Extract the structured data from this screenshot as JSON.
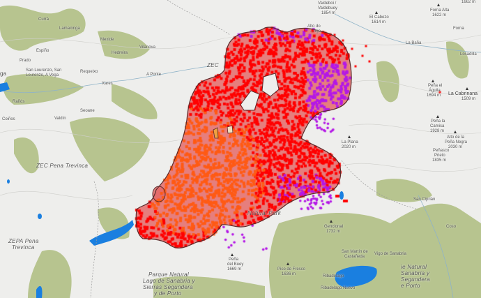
{
  "map": {
    "colors": {
      "land": "#eeeeec",
      "forest": "#b7c48f",
      "water": "#1a7fe0",
      "fire_area": "#e46a6a",
      "fire_outline": "#5a2a2a",
      "hotspot_recent": "#ff0000",
      "hotspot_older": "#ff5a14",
      "hotspot_edge": "#b418e6"
    },
    "labels": {
      "curra": "Currá",
      "lamalonga": "Lamalonga",
      "mexide": "Mexide",
      "hedreira": "Hedreira",
      "vilanova": "Vilanova",
      "espino": "Espiño",
      "prado": "Prado",
      "san_lourenzo": "San Lourenzo, San",
      "a_vega": "Lourenzo, A Vega",
      "ga": "ga",
      "requeixo": "Requeixo",
      "xares": "Xares",
      "a_ponte": "A Ponte",
      "ranos": "Rañós",
      "seoane": "Seoane",
      "valdin": "Valdín",
      "coinos": "Coiños",
      "zec": "ZEC",
      "valdeboi": "Valdeboi /",
      "valdebuey": "Valdebuey",
      "valdebuey_elev": "1854 m",
      "alto_do": "Alto do",
      "alto_do_2": "...ngo",
      "el_cabezo": "El Cabezo",
      "el_cabezo_elev": "1614 m",
      "forna_alta": "Forna Alta",
      "forna_alta_elev": "1622 m",
      "peak_1662": "1662 m",
      "forna": "Forna",
      "la_bana": "La Baña",
      "losadilla": "Losadilla",
      "pena_aguila": "Peña el",
      "pena_aguila_2": "Águila",
      "pena_aguila_elev": "1694 m",
      "la_cabrinana": "La Cabrinana",
      "la_cabrinana_elev": "1509 m",
      "pena_camisa": "Peña la",
      "pena_camisa_2": "Camisa",
      "pena_camisa_elev": "1928 m",
      "pena_negra": "Alto de la",
      "pena_negra_2": "Peña Negra",
      "pena_negra_elev": "2030 m",
      "la_plana": "La Plana",
      "la_plana_elev": "2020 m",
      "zec_trevinca": "ZEC Pena Trevinca",
      "zepa_1": "ZEPA Pena",
      "zepa_2": "Trevinca",
      "parque_1": "Parque Natural",
      "parque_2": "Lago de Sanabria y",
      "parque_3": "Sierras Segundera",
      "parque_4": "y de Porto",
      "pena_buey": "Peña",
      "pena_buey_2": "del Buey",
      "pena_buey_elev": "1669 m",
      "penasco": "Peñasco",
      "penasco_2": "Prieto",
      "penasco_elev": "1835 m",
      "san_ciprian": "San Ciprián",
      "coso": "Coso",
      "gencional": "Gencional",
      "gencional_elev": "1732 m",
      "natural_park": "Natural Park",
      "san_martin": "San Martín de",
      "san_martin_2": "Castañeda",
      "vigo": "Vigo de Sanabria",
      "pico_fresco": "Pico de Fresco",
      "pico_fresco_elev": "1636 m",
      "ribadelago": "Ribadelago",
      "ribadelago_nuevo": "Ribadelago Nuevo",
      "pn_e1": "ie Natural",
      "pn_e2": "Sanabria y",
      "pn_e3": "Segundera",
      "pn_e4": "e Porto"
    }
  }
}
